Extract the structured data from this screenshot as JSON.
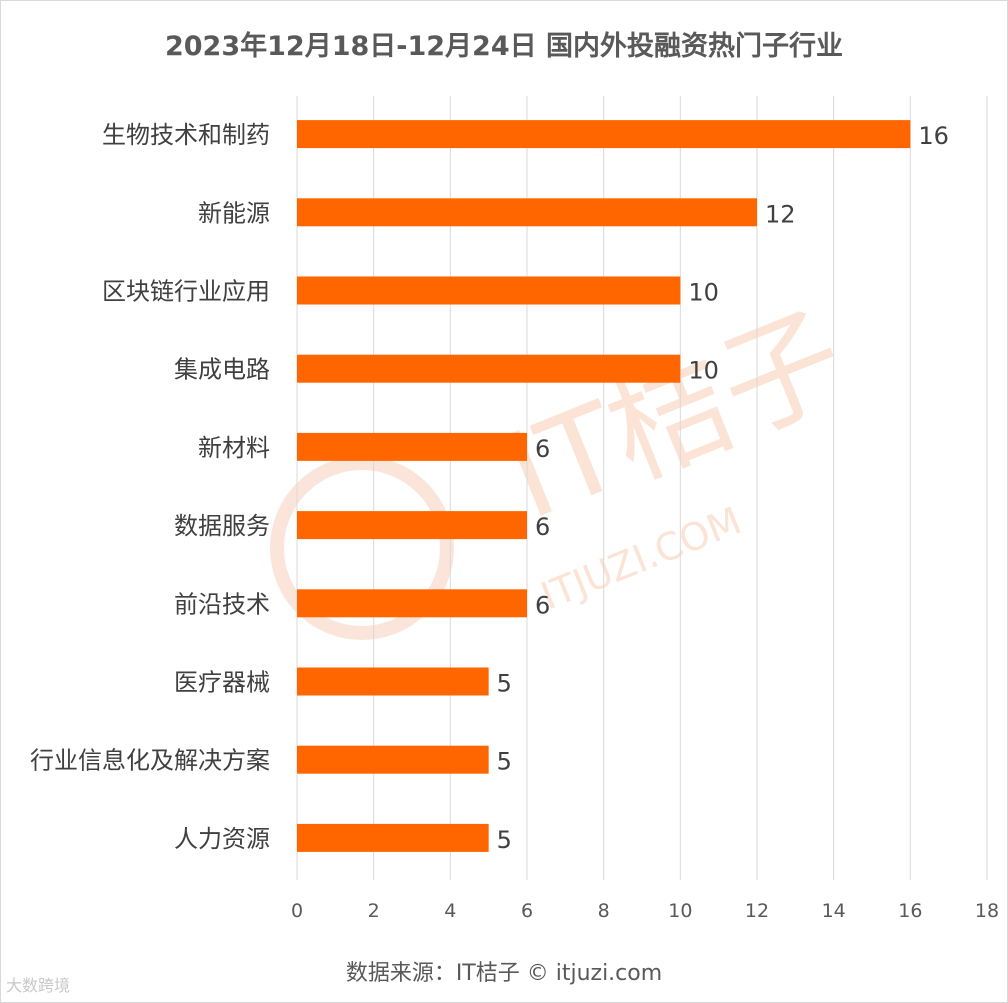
{
  "chart_data": {
    "type": "bar",
    "orientation": "horizontal",
    "title": "2023年12月18日-12月24日 国内外投融资热门子行业",
    "categories": [
      "生物技术和制药",
      "新能源",
      "区块链行业应用",
      "集成电路",
      "新材料",
      "数据服务",
      "前沿技术",
      "医疗器械",
      "行业信息化及解决方案",
      "人力资源"
    ],
    "values": [
      16,
      12,
      10,
      10,
      6,
      6,
      6,
      5,
      5,
      5
    ],
    "xlim": [
      0,
      18
    ],
    "xticks": [
      0,
      2,
      4,
      6,
      8,
      10,
      12,
      14,
      16,
      18
    ],
    "grid": true,
    "bar_color": "#ff6600",
    "data_labels": true
  },
  "watermark": {
    "brand": "IT桔子",
    "domain": "ITJUZI.COM",
    "color": "#f9d6c4"
  },
  "source_text": "数据来源：IT桔子 © itjuzi.com",
  "corner_watermark": "大数跨境"
}
